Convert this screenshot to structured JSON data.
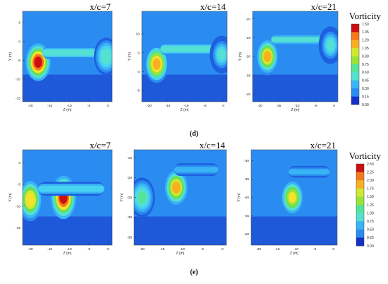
{
  "figure": {
    "row_d_label": "(d)",
    "row_e_label": "(e)"
  },
  "colormap": [
    "#1430c8",
    "#1e5ee0",
    "#2a8cf0",
    "#39b4f4",
    "#48d2f2",
    "#54e0d2",
    "#56e39a",
    "#64e05a",
    "#98e438",
    "#d0e830",
    "#f5e22c",
    "#f7b022",
    "#f47a1c",
    "#e84015",
    "#cc1010"
  ],
  "chart_data": [
    {
      "type": "heatmap",
      "row": "d",
      "title": "x/c=7",
      "xlabel": "Z (m)",
      "ylabel": "Y (m)",
      "xlim": [
        -22,
        1
      ],
      "ylim": [
        -16,
        8
      ],
      "xticks": [
        "-20",
        "-15",
        "-10",
        "-5",
        "0"
      ],
      "yticks": [
        "5",
        "0",
        "-5",
        "-10",
        "-15"
      ],
      "features": [
        {
          "kind": "vortex",
          "z": -18,
          "y": -5.5,
          "peak": 1.5
        },
        {
          "kind": "sheet",
          "z_from": -17,
          "z_to": -1,
          "y": -3,
          "peak": 0.6
        },
        {
          "kind": "vortex",
          "z": -0.5,
          "y": -4,
          "peak": 0.6
        }
      ]
    },
    {
      "type": "heatmap",
      "row": "d",
      "title": "x/c=14",
      "xlabel": "Z (m)",
      "ylabel": "Y (m)",
      "xlim": [
        -22,
        1
      ],
      "ylim": [
        -8,
        16
      ],
      "xticks": [
        "-20",
        "-15",
        "-10",
        "-5",
        "0"
      ],
      "yticks": [
        "10",
        "5",
        "0",
        "-5"
      ],
      "features": [
        {
          "kind": "vortex",
          "z": -18,
          "y": 2,
          "peak": 1.2
        },
        {
          "kind": "sheet",
          "z_from": -17,
          "z_to": -2,
          "y": 6,
          "peak": 0.55
        },
        {
          "kind": "vortex",
          "z": -0.5,
          "y": 4.5,
          "peak": 0.55
        }
      ]
    },
    {
      "type": "heatmap",
      "row": "d",
      "title": "x/c=21",
      "xlabel": "Z (m)",
      "ylabel": "Y (m)",
      "xlim": [
        -22,
        1
      ],
      "ylim": [
        -42,
        -18
      ],
      "xticks": [
        "-20",
        "-15",
        "-10",
        "-5",
        "0"
      ],
      "yticks": [
        "-20",
        "-25",
        "-30",
        "-35",
        "-40"
      ],
      "features": [
        {
          "kind": "vortex",
          "z": -18,
          "y": -30,
          "peak": 1.1
        },
        {
          "kind": "sheet",
          "z_from": -17,
          "z_to": -2,
          "y": -25.5,
          "peak": 0.5
        },
        {
          "kind": "vortex",
          "z": -1,
          "y": -27,
          "peak": 0.5
        }
      ]
    },
    {
      "type": "heatmap",
      "row": "e",
      "title": "x/c=7",
      "xlabel": "Z (m)",
      "ylabel": "Y (m)",
      "xlim": [
        -22,
        1
      ],
      "ylim": [
        -19,
        3
      ],
      "xticks": [
        "-20",
        "-15",
        "-10",
        "-5",
        "0"
      ],
      "yticks": [
        "0",
        "-5",
        "-10",
        "-15"
      ],
      "features": [
        {
          "kind": "vortex",
          "z": -20,
          "y": -8.5,
          "peak": 1.8
        },
        {
          "kind": "vortex",
          "z": -11.5,
          "y": -8,
          "peak": 2.5
        },
        {
          "kind": "sheet",
          "z_from": -18,
          "z_to": -1,
          "y": -6,
          "peak": 0.7
        }
      ]
    },
    {
      "type": "heatmap",
      "row": "e",
      "title": "x/c=14",
      "xlabel": "Z (m)",
      "ylabel": "Y (m)",
      "xlim": [
        -22,
        1
      ],
      "ylim": [
        -37,
        -13
      ],
      "xticks": [
        "-20",
        "-15",
        "-10",
        "-5",
        "0"
      ],
      "yticks": [
        "-15",
        "-20",
        "-25",
        "-30",
        "-35"
      ],
      "features": [
        {
          "kind": "vortex",
          "z": -11.5,
          "y": -22.5,
          "peak": 1.85
        },
        {
          "kind": "vortex",
          "z": -20,
          "y": -25,
          "peak": 1.1
        },
        {
          "kind": "sheet",
          "z_from": -12,
          "z_to": -1,
          "y": -18,
          "peak": 0.6
        }
      ]
    },
    {
      "type": "heatmap",
      "row": "e",
      "title": "x/c=21",
      "xlabel": "Z (m)",
      "ylabel": "Y (m)",
      "xlim": [
        -22,
        1
      ],
      "ylim": [
        -53,
        -27
      ],
      "xticks": [
        "-20",
        "-15",
        "-10",
        "-5",
        "0"
      ],
      "yticks": [
        "-30",
        "-35",
        "-40",
        "-45",
        "-50"
      ],
      "features": [
        {
          "kind": "vortex",
          "z": -11,
          "y": -40,
          "peak": 1.75
        },
        {
          "kind": "sheet",
          "z_from": -12,
          "z_to": -1,
          "y": -33,
          "peak": 0.6
        }
      ]
    }
  ],
  "colorbars": [
    {
      "row": "d",
      "title": "Vorticity",
      "min": 0,
      "max": 1.5,
      "step": 0.15,
      "ticks": [
        "1.50",
        "1.35",
        "1.20",
        "1.05",
        "0.90",
        "0.75",
        "0.60",
        "0.45",
        "0.30",
        "0.15",
        "0.00"
      ]
    },
    {
      "row": "e",
      "title": "Vorticity",
      "min": 0,
      "max": 2.5,
      "step": 0.25,
      "ticks": [
        "2.50",
        "2.25",
        "2.00",
        "1.75",
        "1.50",
        "1.25",
        "1.00",
        "0.75",
        "0.50",
        "0.25",
        "0.00"
      ]
    }
  ]
}
